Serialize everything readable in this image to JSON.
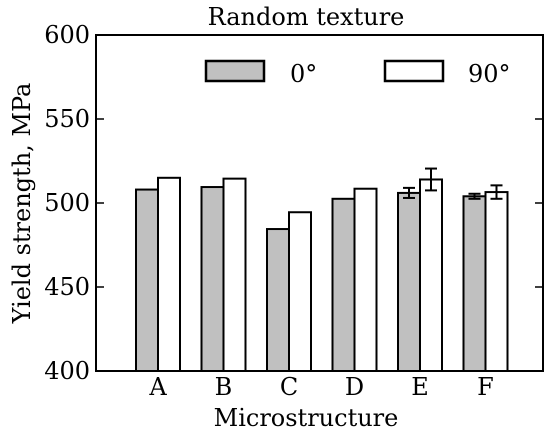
{
  "chart_data": {
    "type": "bar",
    "title": "Random texture",
    "xlabel": "Microstructure",
    "ylabel": "Yield strength, MPa",
    "ylim": [
      400,
      600
    ],
    "yticks": [
      400,
      450,
      500,
      550,
      600
    ],
    "grid": false,
    "legend_placement": "top",
    "categories": [
      "A",
      "B",
      "C",
      "D",
      "E",
      "F"
    ],
    "series": [
      {
        "name": "0°",
        "color": "#c0c0c0",
        "values": [
          508,
          509.5,
          484.5,
          502.5,
          506,
          504
        ],
        "errors": [
          0,
          0,
          0,
          0,
          3,
          1.5
        ]
      },
      {
        "name": "90°",
        "color": "#ffffff",
        "values": [
          515,
          514.5,
          494.5,
          508.5,
          514,
          506.5
        ],
        "errors": [
          0,
          0,
          0,
          0,
          6.5,
          4
        ]
      }
    ]
  }
}
